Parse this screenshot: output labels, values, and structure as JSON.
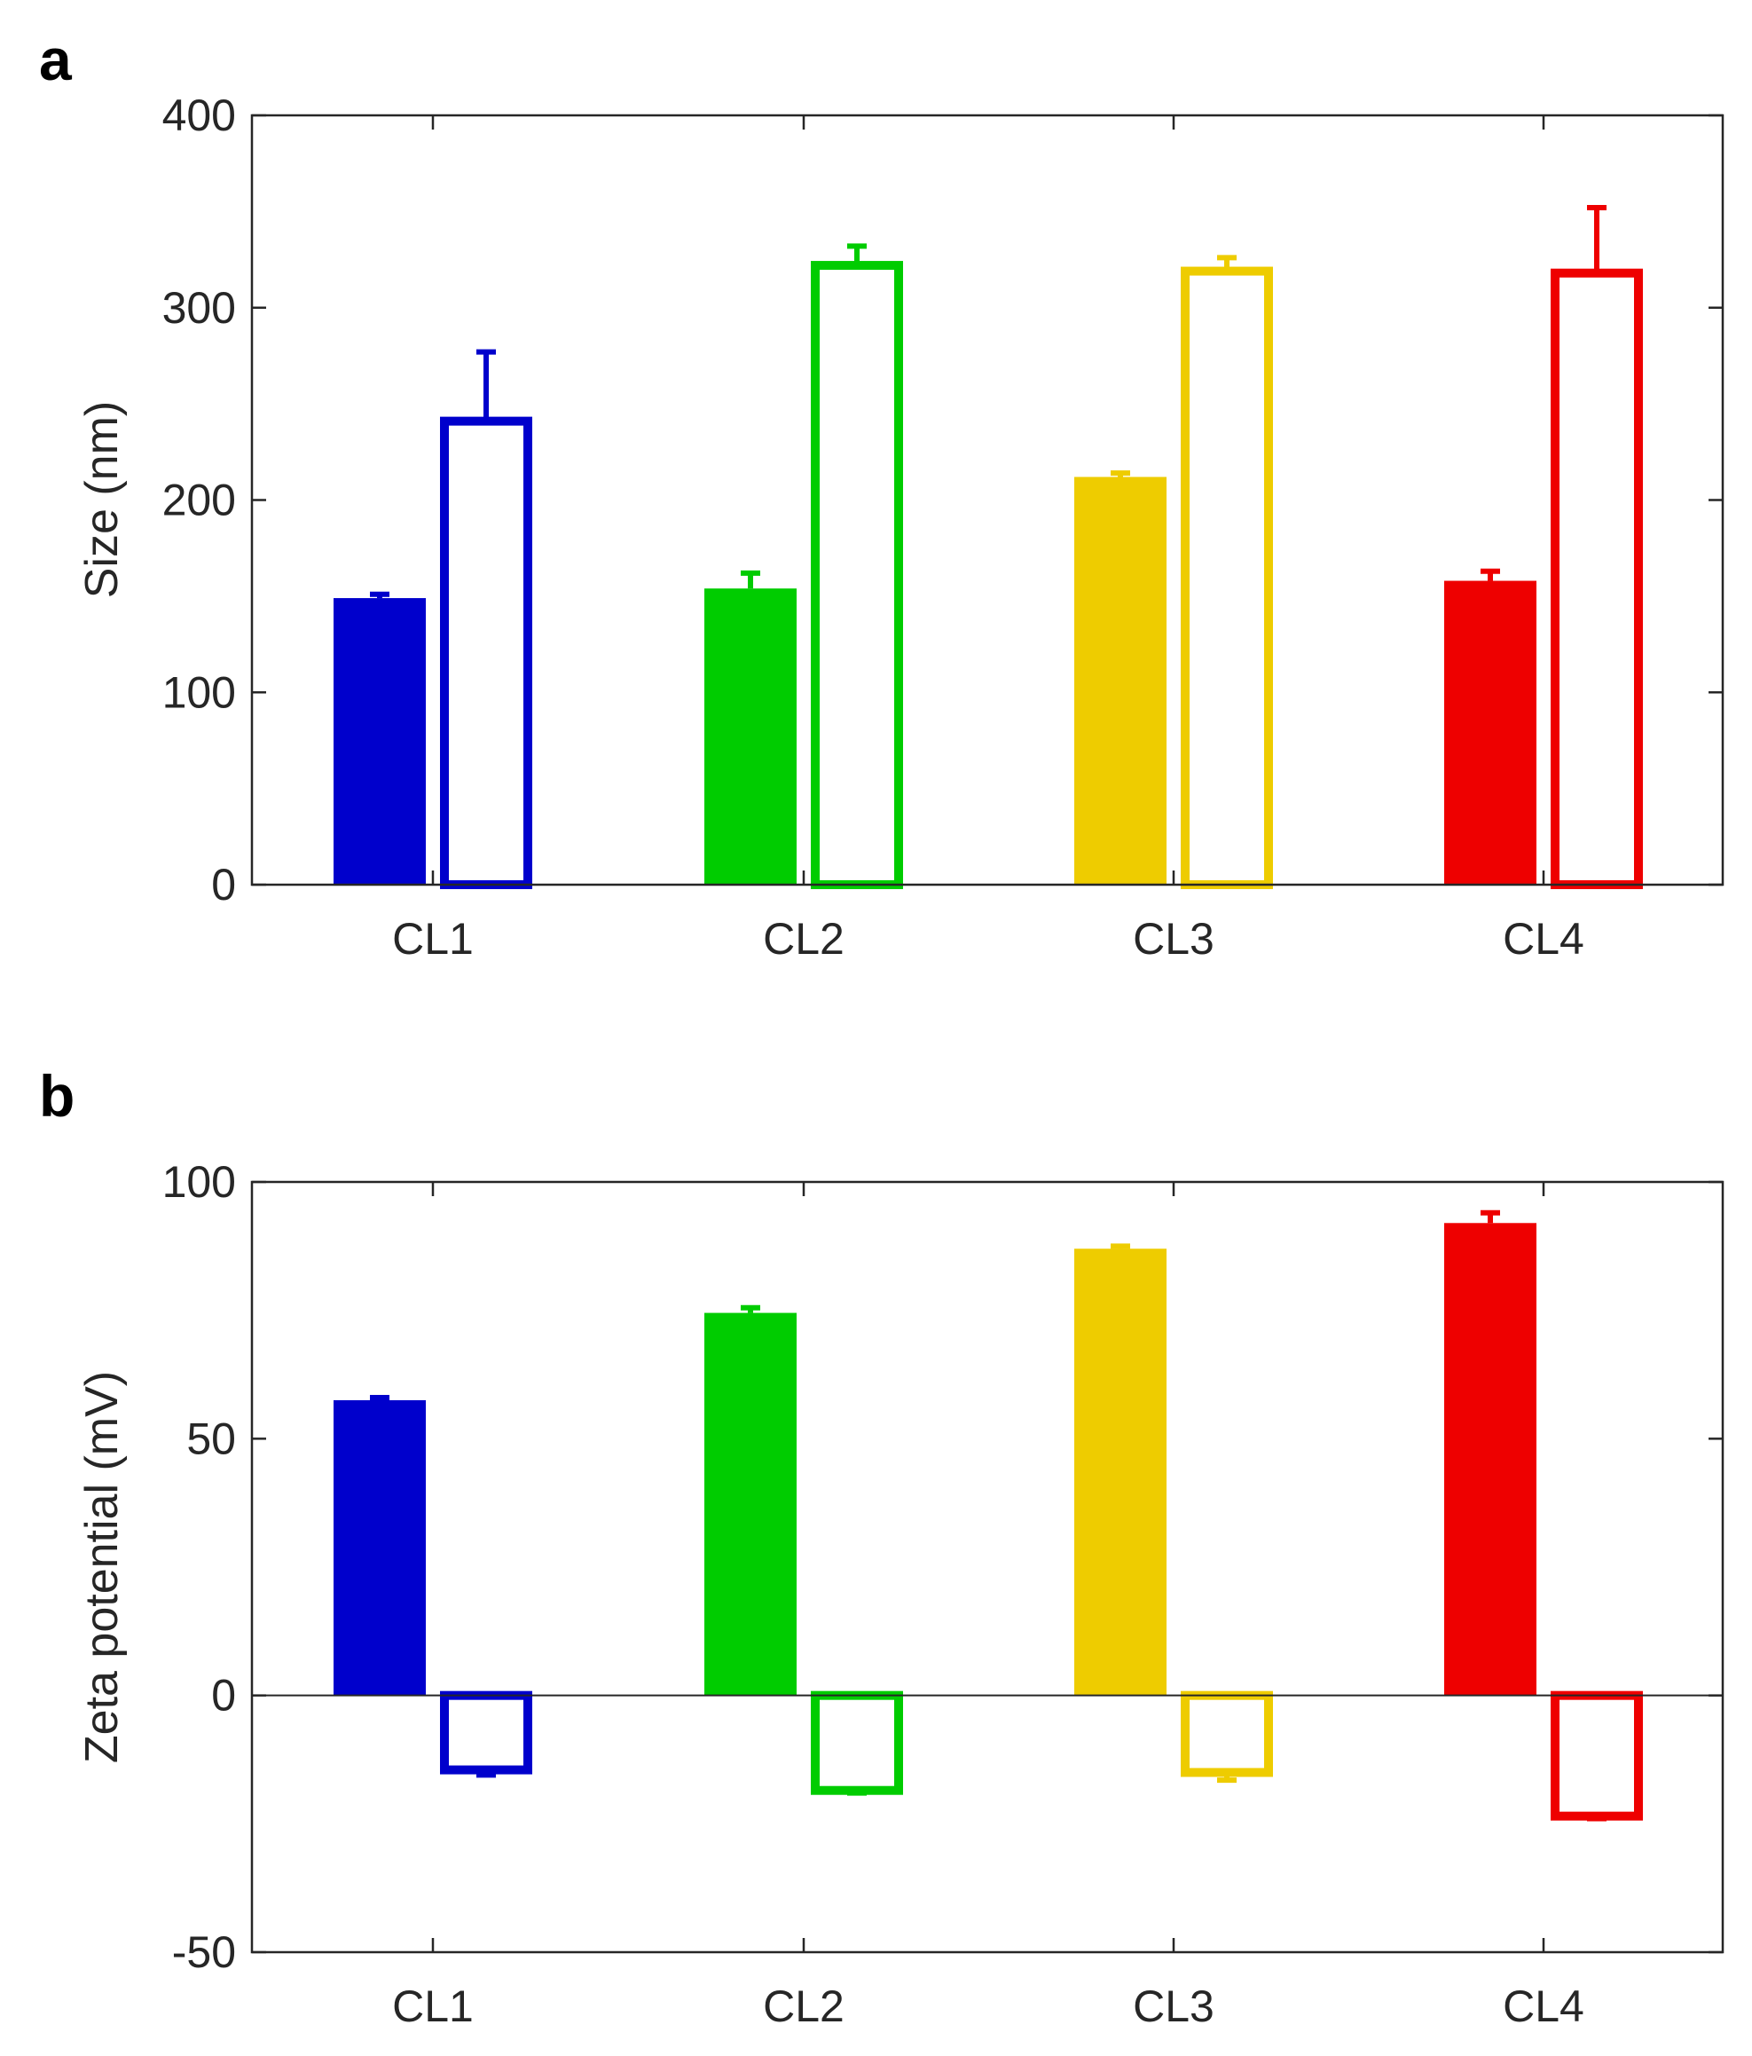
{
  "figure": {
    "panels": [
      "a",
      "b"
    ]
  },
  "chart_data": [
    {
      "panel": "a",
      "type": "bar",
      "title": "",
      "xlabel": "",
      "ylabel": "Size (nm)",
      "ylim": [
        0,
        400
      ],
      "yticks": [
        "0",
        "100",
        "200",
        "300",
        "400"
      ],
      "categories": [
        "CL1",
        "CL2",
        "CL3",
        "CL4"
      ],
      "colors": [
        "#0000cc",
        "#00cc00",
        "#eecc00",
        "#ee0000"
      ],
      "grid": false,
      "series": [
        {
          "name": "filled",
          "style": "filled",
          "values": [
            149,
            154,
            212,
            158
          ],
          "errors": [
            2,
            8,
            2,
            5
          ]
        },
        {
          "name": "open",
          "style": "open",
          "values": [
            241,
            322,
            319,
            318
          ],
          "errors": [
            36,
            10,
            7,
            34
          ]
        }
      ]
    },
    {
      "panel": "b",
      "type": "bar",
      "title": "",
      "xlabel": "",
      "ylabel": "Zeta potential (mV)",
      "ylim": [
        -50,
        100
      ],
      "yticks": [
        "-50",
        "0",
        "50",
        "100"
      ],
      "categories": [
        "CL1",
        "CL2",
        "CL3",
        "CL4"
      ],
      "colors": [
        "#0000cc",
        "#00cc00",
        "#eecc00",
        "#ee0000"
      ],
      "grid": false,
      "zero_line": true,
      "series": [
        {
          "name": "filled",
          "style": "filled",
          "values": [
            57.5,
            74.5,
            87,
            92
          ],
          "errors": [
            0.5,
            1,
            0.5,
            2
          ]
        },
        {
          "name": "open",
          "style": "open",
          "values": [
            -14.5,
            -18.5,
            -15,
            -23.5
          ],
          "errors": [
            1,
            0.5,
            1.5,
            0.5
          ]
        }
      ]
    }
  ]
}
